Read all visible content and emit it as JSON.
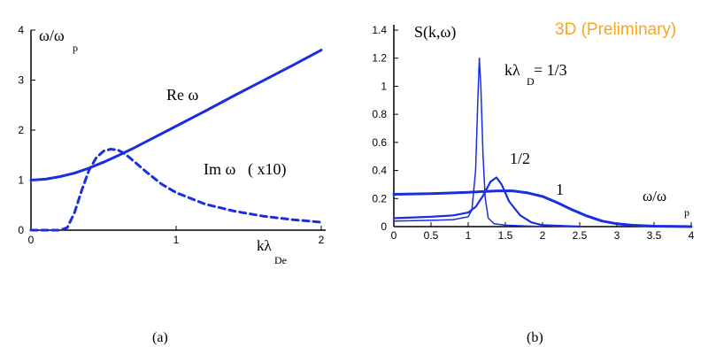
{
  "chart_data": [
    {
      "type": "line",
      "panel_label": "(a)",
      "ylabel": "ω/ω",
      "ylabel_sub": "p",
      "xlabel": "kλ",
      "xlabel_sub": "De",
      "xlim": [
        0,
        2
      ],
      "ylim": [
        0,
        4
      ],
      "x_ticks": [
        "0",
        "1",
        "2"
      ],
      "y_ticks": [
        "0",
        "1",
        "2",
        "3",
        "4"
      ],
      "grid": false,
      "series": [
        {
          "name": "Re ω",
          "style": "solid",
          "color": "#1a2ee0",
          "x": [
            0,
            0.1,
            0.2,
            0.3,
            0.4,
            0.5,
            0.6,
            0.7,
            0.8,
            0.9,
            1.0,
            1.2,
            1.4,
            1.6,
            1.8,
            2.0
          ],
          "y": [
            1.0,
            1.02,
            1.07,
            1.14,
            1.24,
            1.36,
            1.49,
            1.63,
            1.78,
            1.93,
            2.08,
            2.38,
            2.69,
            2.99,
            3.29,
            3.6
          ]
        },
        {
          "name": "Im ω",
          "label_suffix": "( x10)",
          "style": "dashed",
          "color": "#1a2ee0",
          "x": [
            0,
            0.2,
            0.25,
            0.3,
            0.35,
            0.4,
            0.45,
            0.5,
            0.55,
            0.6,
            0.65,
            0.7,
            0.8,
            0.9,
            1.0,
            1.2,
            1.4,
            1.6,
            1.8,
            2.0
          ],
          "y": [
            0,
            0,
            0.05,
            0.35,
            0.8,
            1.2,
            1.45,
            1.58,
            1.62,
            1.6,
            1.52,
            1.4,
            1.15,
            0.92,
            0.75,
            0.52,
            0.38,
            0.28,
            0.21,
            0.16
          ]
        }
      ]
    },
    {
      "type": "line",
      "panel_label": "(b)",
      "title": "3D (Preliminary)",
      "title_color": "#f5a623",
      "ylabel": "S(k,ω)",
      "xlabel": "ω/ω",
      "xlabel_sub": "p",
      "xlim": [
        0,
        4
      ],
      "ylim": [
        0,
        1.4
      ],
      "x_ticks": [
        "0",
        "0.5",
        "1",
        "1.5",
        "2",
        "2.5",
        "3",
        "3.5",
        "4"
      ],
      "y_ticks": [
        "0",
        "0.2",
        "0.4",
        "0.6",
        "0.8",
        "1",
        "1.2",
        "1.4"
      ],
      "grid": false,
      "series": [
        {
          "name": "kλ_D = 1/3",
          "label": "kλ",
          "label_sub": "D",
          "label_value": " = 1/3",
          "color": "#1a2ee0",
          "weight": "thin",
          "x": [
            0,
            0.5,
            0.8,
            1.0,
            1.05,
            1.1,
            1.13,
            1.15,
            1.17,
            1.2,
            1.23,
            1.27,
            1.35,
            1.5,
            2.0
          ],
          "y": [
            0.04,
            0.045,
            0.05,
            0.07,
            0.12,
            0.4,
            0.9,
            1.2,
            1.0,
            0.5,
            0.2,
            0.06,
            0.02,
            0.01,
            0.0
          ]
        },
        {
          "name": "1/2",
          "color": "#1a2ee0",
          "weight": "medium",
          "x": [
            0,
            0.5,
            0.8,
            1.0,
            1.1,
            1.2,
            1.3,
            1.38,
            1.45,
            1.55,
            1.7,
            1.85,
            2.0,
            2.5
          ],
          "y": [
            0.06,
            0.07,
            0.08,
            0.1,
            0.14,
            0.22,
            0.32,
            0.35,
            0.3,
            0.18,
            0.08,
            0.03,
            0.01,
            0.0
          ]
        },
        {
          "name": "1",
          "color": "#1a2ee0",
          "weight": "thick",
          "x": [
            0,
            0.5,
            0.8,
            1.0,
            1.2,
            1.4,
            1.6,
            1.8,
            2.0,
            2.2,
            2.4,
            2.6,
            2.8,
            3.0,
            3.2,
            3.5,
            4.0
          ],
          "y": [
            0.23,
            0.235,
            0.24,
            0.245,
            0.25,
            0.255,
            0.255,
            0.24,
            0.215,
            0.17,
            0.12,
            0.075,
            0.04,
            0.02,
            0.01,
            0.003,
            0.0
          ]
        }
      ]
    }
  ]
}
